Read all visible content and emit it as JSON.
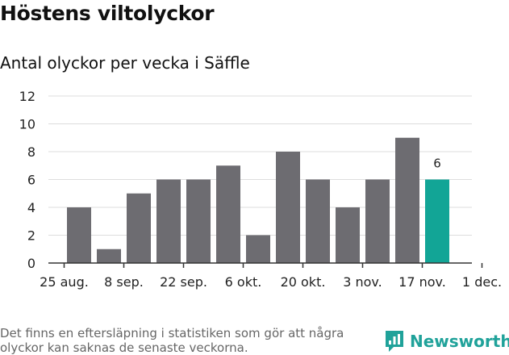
{
  "header": {
    "title": "Höstens viltolyckor",
    "subtitle": "Antal olyckor per vecka i Säffle"
  },
  "footer": {
    "note": "Det finns en eftersläpning i statistiken som gör att några olyckor kan saknas de senaste veckorna.",
    "brand": "Newsworthy"
  },
  "colors": {
    "bar": "#6d6c71",
    "highlight": "#12a596",
    "grid": "#dddddd",
    "axis": "#333333",
    "brand": "#20a29a"
  },
  "chart_data": {
    "type": "bar",
    "title": "Höstens viltolyckor",
    "subtitle": "Antal olyckor per vecka i Säffle",
    "xlabel": "",
    "ylabel": "",
    "ylim": [
      0,
      12
    ],
    "yticks": [
      0,
      2,
      4,
      6,
      8,
      10,
      12
    ],
    "grid": true,
    "x_tick_labels": [
      "25 aug.",
      "8 sep.",
      "22 sep.",
      "6 okt.",
      "20 okt.",
      "3 nov.",
      "17 nov.",
      "1 dec."
    ],
    "values": [
      4,
      1,
      5,
      6,
      6,
      7,
      2,
      8,
      6,
      4,
      6,
      9,
      6
    ],
    "highlight_index": 12,
    "data_labels": [
      {
        "index": 12,
        "text": "6"
      }
    ]
  }
}
